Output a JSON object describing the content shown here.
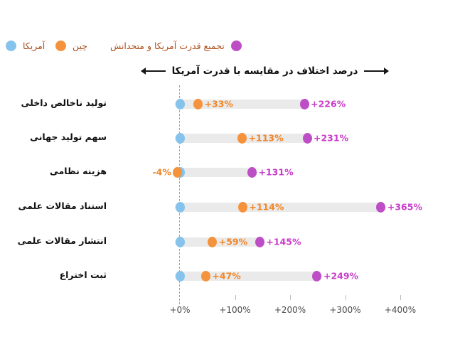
{
  "legend": {
    "text_color": "#ad4f1f",
    "items": [
      {
        "id": "usa",
        "label": "آمریکا",
        "color": "#85c3ec"
      },
      {
        "id": "china",
        "label": "چین",
        "color": "#f5923c"
      },
      {
        "id": "usa-allies",
        "label": "تجمیع قدرت آمریکا و متحدانش",
        "color": "#be4ec6"
      }
    ]
  },
  "title": {
    "text": "درصد اختلاف در مقایسه با قدرت آمریکا"
  },
  "colors": {
    "china_value_text": "#f08627",
    "allies_value_text": "#c83cc8",
    "track_bar": "#eaeaea",
    "baseline_dash": "#a6a6a6",
    "axis_text": "#4a4a4a"
  },
  "chart_data": {
    "type": "scatter",
    "subtype": "dumbbell-dot-plot",
    "title": "درصد اختلاف در مقایسه با قدرت آمریکا",
    "unit": "%",
    "baseline_series": "آمریکا",
    "grid": false,
    "legend_position": "top-left",
    "categories": [
      "تولید ناخالص داخلی",
      "سهم تولید جهانی",
      "هزینه نظامی",
      "استناد مقالات علمی",
      "انتشار مقالات علمی",
      "ثبت اختراع"
    ],
    "series": [
      {
        "name": "آمریکا",
        "color": "#85c3ec",
        "values": [
          0,
          0,
          0,
          0,
          0,
          0
        ],
        "labels": [
          "",
          "",
          "",
          "",
          "",
          ""
        ]
      },
      {
        "name": "چین",
        "color": "#f5923c",
        "values": [
          33,
          113,
          -4,
          114,
          59,
          47
        ],
        "labels": [
          "+33%",
          "+113%",
          "-4%",
          "+114%",
          "+59%",
          "+47%"
        ]
      },
      {
        "name": "تجمیع قدرت آمریکا و متحدانش",
        "color": "#be4ec6",
        "values": [
          226,
          231,
          131,
          365,
          145,
          249
        ],
        "labels": [
          "+226%",
          "+231%",
          "+131%",
          "+365%",
          "+145%",
          "+249%"
        ]
      }
    ],
    "x_ticks": [
      {
        "value": 0,
        "label": "+0%"
      },
      {
        "value": 100,
        "label": "+100%"
      },
      {
        "value": 200,
        "label": "+200%"
      },
      {
        "value": 300,
        "label": "+300%"
      },
      {
        "value": 400,
        "label": "+400%"
      }
    ],
    "xlim": [
      -30,
      430
    ]
  }
}
